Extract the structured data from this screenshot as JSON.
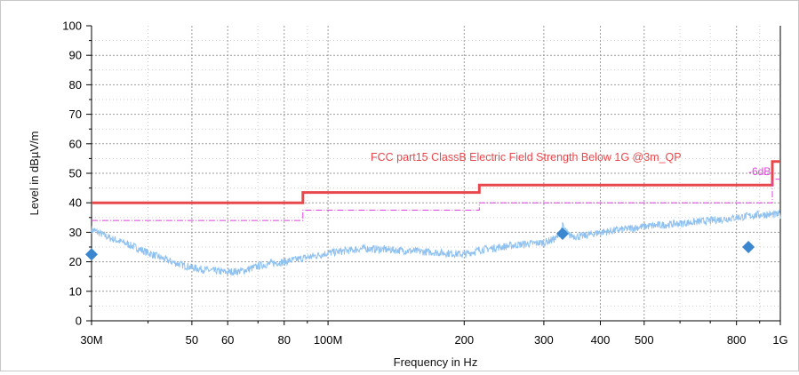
{
  "chart_data": {
    "type": "line",
    "xlabel": "Frequency in Hz",
    "ylabel": "Level in dBµV/m",
    "x_scale": "log",
    "xlim": [
      30000000,
      1000000000
    ],
    "ylim": [
      0,
      100
    ],
    "grid": true,
    "x_ticks": [
      {
        "value": 30000000,
        "label": "30M"
      },
      {
        "value": 50000000,
        "label": "50"
      },
      {
        "value": 60000000,
        "label": "60"
      },
      {
        "value": 80000000,
        "label": "80"
      },
      {
        "value": 100000000,
        "label": "100M"
      },
      {
        "value": 200000000,
        "label": "200"
      },
      {
        "value": 300000000,
        "label": "300"
      },
      {
        "value": 400000000,
        "label": "400"
      },
      {
        "value": 500000000,
        "label": "500"
      },
      {
        "value": 800000000,
        "label": "800"
      },
      {
        "value": 1000000000,
        "label": "1G"
      }
    ],
    "y_ticks": [
      0,
      10,
      20,
      30,
      40,
      50,
      60,
      70,
      80,
      90,
      100
    ],
    "limit_label": "FCC part15 ClassB Electric Field Strength Below 1G @3m_QP",
    "margin_label": "-6dB",
    "series": [
      {
        "style": "step",
        "color": "#e8484c",
        "x": [
          30000000,
          88000000,
          88000000,
          216000000,
          216000000,
          960000000,
          960000000,
          1000000000
        ],
        "y": [
          40,
          40,
          43.5,
          43.5,
          46,
          46,
          54,
          54
        ]
      },
      {
        "style": "step-dash",
        "color": "#e040e0",
        "x": [
          30000000,
          88000000,
          88000000,
          216000000,
          216000000,
          960000000,
          960000000,
          1000000000
        ],
        "y": [
          34,
          34,
          37.5,
          37.5,
          40,
          40,
          48,
          48
        ]
      },
      {
        "style": "trace",
        "color": "#8fc1f0",
        "x": [
          30000000,
          33000000,
          36000000,
          40000000,
          45000000,
          50000000,
          55000000,
          60000000,
          65000000,
          70000000,
          75000000,
          80000000,
          90000000,
          100000000,
          120000000,
          140000000,
          160000000,
          180000000,
          200000000,
          216000000,
          240000000,
          270000000,
          300000000,
          320000000,
          330000000,
          340000000,
          360000000,
          400000000,
          450000000,
          500000000,
          550000000,
          600000000,
          700000000,
          800000000,
          900000000,
          1000000000
        ],
        "y": [
          31,
          28,
          26,
          23,
          20,
          18,
          17,
          16.5,
          17,
          18.5,
          19.5,
          20,
          21.5,
          23,
          24.5,
          24,
          23.5,
          23,
          22.5,
          24,
          25,
          26,
          26.5,
          28,
          32,
          29,
          28.5,
          30,
          31,
          32,
          32.5,
          33,
          34,
          35,
          36,
          36
        ]
      },
      {
        "style": "markers",
        "color": "#3a87d0",
        "x": [
          30000000,
          330000000,
          850000000
        ],
        "y": [
          22.5,
          29.5,
          25
        ]
      }
    ]
  }
}
